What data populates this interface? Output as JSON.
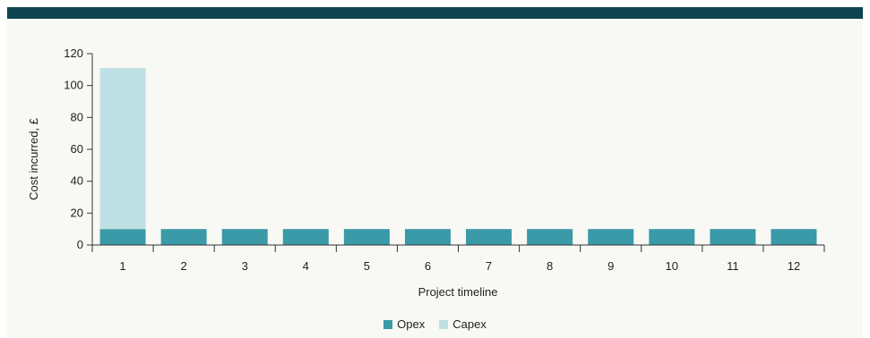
{
  "colors": {
    "header": "#0f4552",
    "opex": "#3a9aa8",
    "capex": "#bfe0e4",
    "axis": "#333333"
  },
  "chart_data": {
    "type": "bar",
    "stacked": true,
    "categories": [
      "1",
      "2",
      "3",
      "4",
      "5",
      "6",
      "7",
      "8",
      "9",
      "10",
      "11",
      "12"
    ],
    "series": [
      {
        "name": "Opex",
        "values": [
          10,
          10,
          10,
          10,
          10,
          10,
          10,
          10,
          10,
          10,
          10,
          10
        ]
      },
      {
        "name": "Capex",
        "values": [
          101,
          0,
          0,
          0,
          0,
          0,
          0,
          0,
          0,
          0,
          0,
          0
        ]
      }
    ],
    "xlabel": "Project timeline",
    "ylabel": "Cost incurred, £",
    "ylim": [
      0,
      120
    ],
    "yticks": [
      0,
      20,
      40,
      60,
      80,
      100,
      120
    ],
    "grid": false,
    "legend_position": "bottom"
  },
  "legend": {
    "opex_label": "Opex",
    "capex_label": "Capex"
  }
}
